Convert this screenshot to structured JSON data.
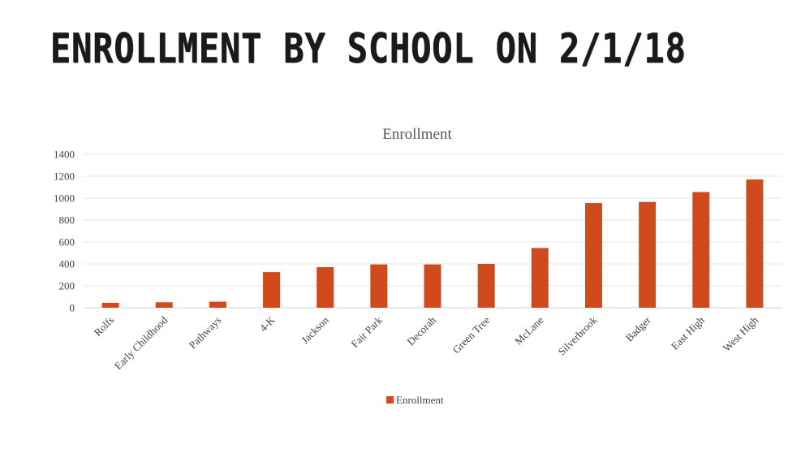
{
  "slide": {
    "title": "ENROLLMENT BY SCHOOL ON 2/1/18"
  },
  "chart_data": {
    "type": "bar",
    "title": "Enrollment",
    "categories": [
      "Rolfs",
      "Early Childhood",
      "Pathways",
      "4-K",
      "Jackson",
      "Fair Park",
      "Decorah",
      "Green Tree",
      "McLane",
      "Silverbrook",
      "Badger",
      "East High",
      "West High"
    ],
    "series": [
      {
        "name": "Enrollment",
        "color": "#d04a1e",
        "values": [
          45,
          50,
          55,
          325,
          370,
          395,
          395,
          400,
          545,
          955,
          965,
          1055,
          1170
        ]
      }
    ],
    "y_ticks": [
      "0",
      "200",
      "400",
      "600",
      "800",
      "1000",
      "1200",
      "1400"
    ],
    "ylim": [
      0,
      1400
    ],
    "grid": true,
    "legend_position": "bottom"
  }
}
